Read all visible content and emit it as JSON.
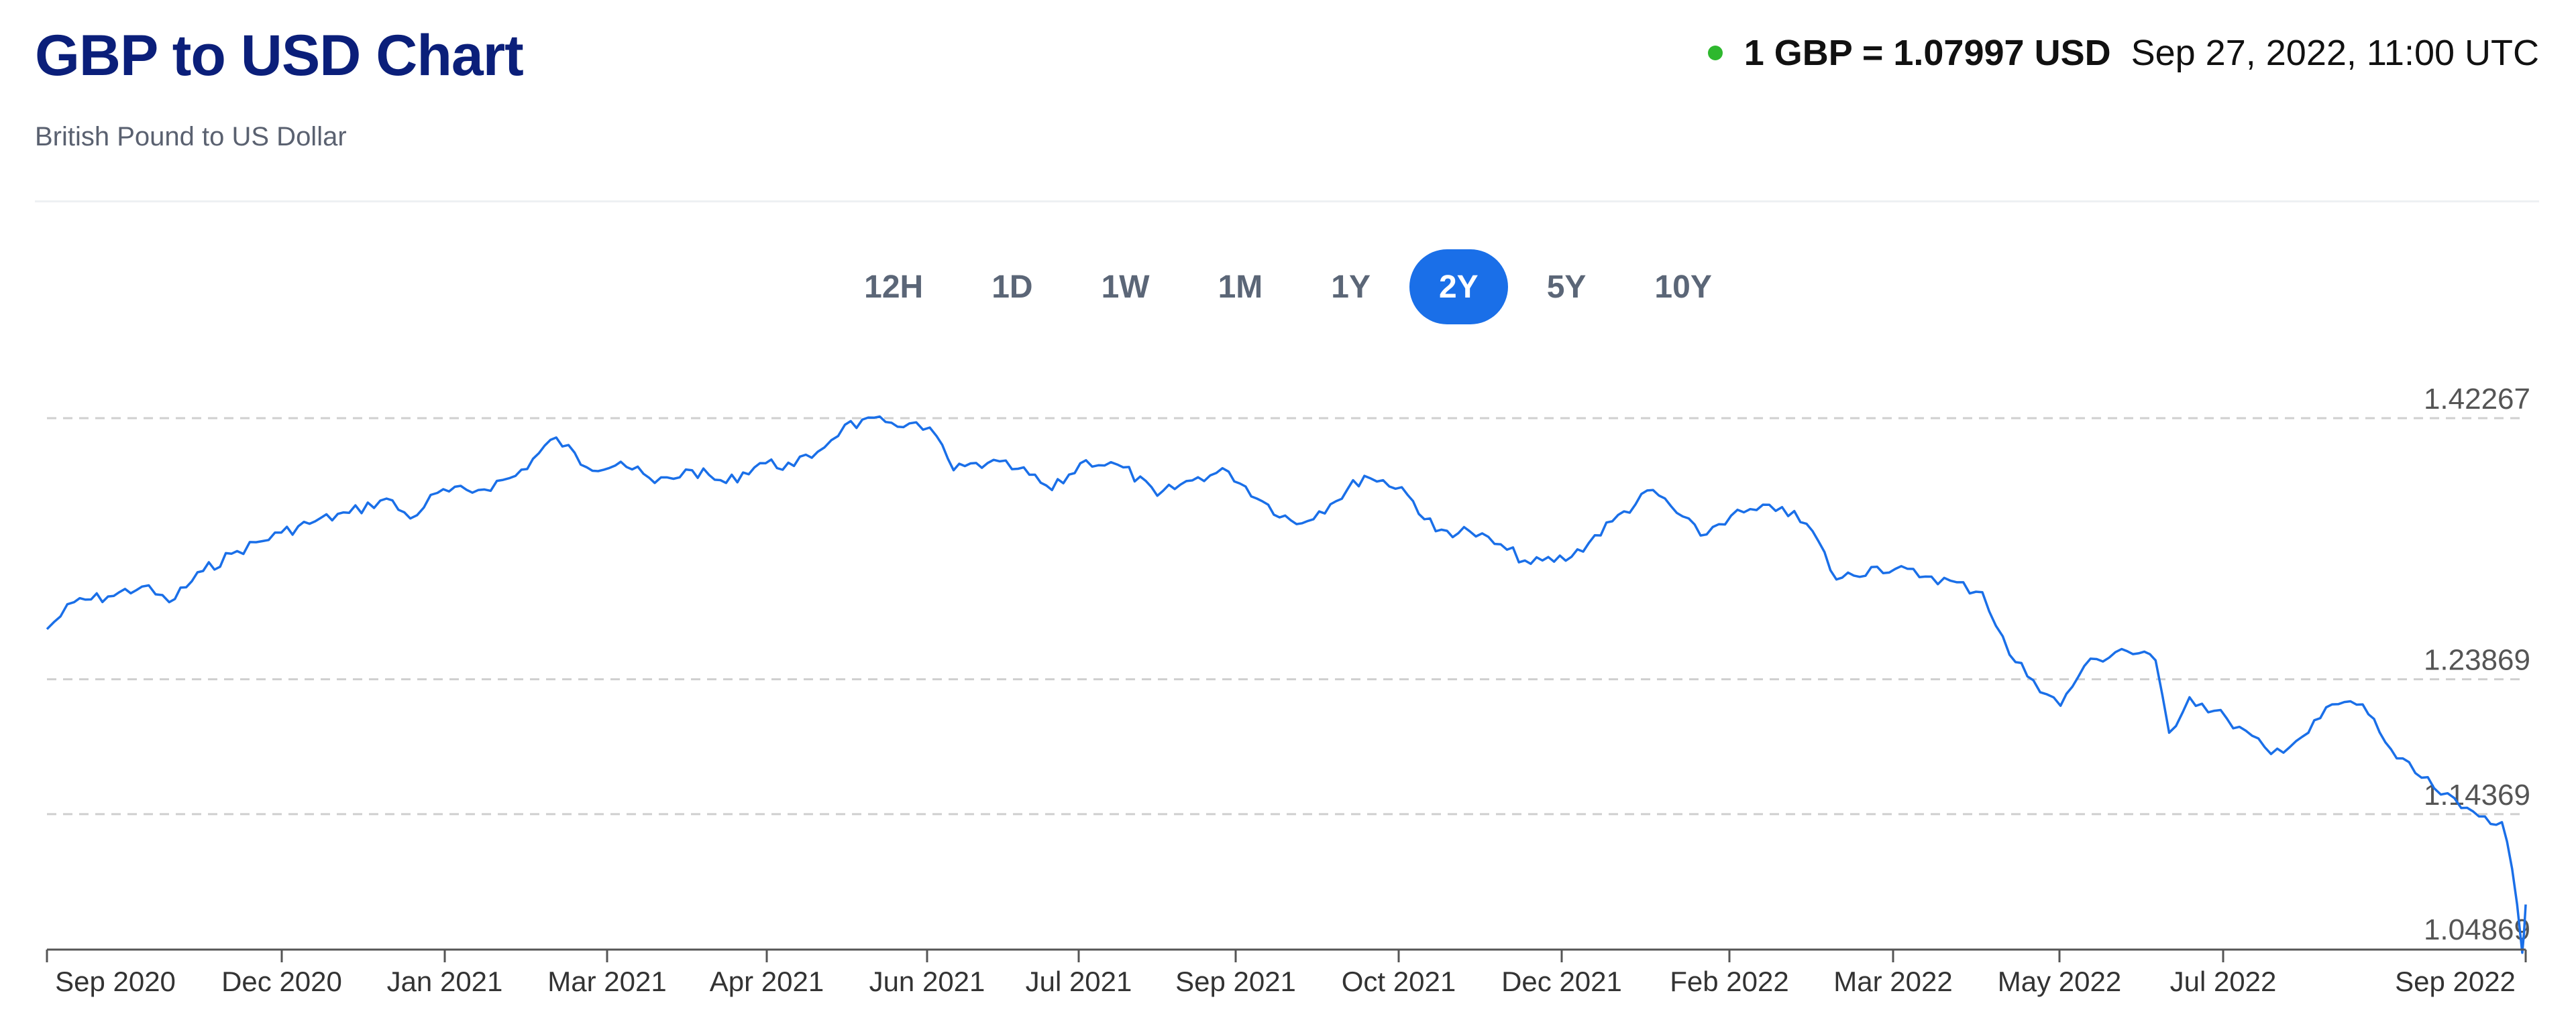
{
  "header": {
    "title": "GBP to USD Chart",
    "subtitle": "British Pound to US Dollar"
  },
  "rate": {
    "value_text": "1 GBP = 1.07997 USD",
    "timestamp": "Sep 27, 2022, 11:00 UTC",
    "live_color": "#2eb82e"
  },
  "ranges": [
    {
      "label": "12H",
      "active": false
    },
    {
      "label": "1D",
      "active": false
    },
    {
      "label": "1W",
      "active": false
    },
    {
      "label": "1M",
      "active": false
    },
    {
      "label": "1Y",
      "active": false
    },
    {
      "label": "2Y",
      "active": true
    },
    {
      "label": "5Y",
      "active": false
    },
    {
      "label": "10Y",
      "active": false
    }
  ],
  "chart_data": {
    "type": "line",
    "title": "",
    "xlabel": "",
    "ylabel": "",
    "line_color": "#1a6fe8",
    "grid": "dashed horizontal",
    "y_axis_position": "right",
    "y_ticks": [
      1.42267,
      1.23869,
      1.14369,
      1.04869
    ],
    "ylim": [
      1.04869,
      1.42267
    ],
    "x_ticks": [
      "Sep 2020",
      "Dec 2020",
      "Jan 2021",
      "Mar 2021",
      "Apr 2021",
      "Jun 2021",
      "Jul 2021",
      "Sep 2021",
      "Oct 2021",
      "Dec 2021",
      "Feb 2022",
      "Mar 2022",
      "May 2022",
      "Jul 2022",
      "Sep 2022"
    ],
    "xlim": [
      "2020-09-27",
      "2022-09-27"
    ],
    "series": [
      {
        "name": "",
        "points": [
          [
            "2020-09-27",
            1.274
          ],
          [
            "2020-10-05",
            1.293
          ],
          [
            "2020-10-15",
            1.297
          ],
          [
            "2020-10-25",
            1.304
          ],
          [
            "2020-11-02",
            1.293
          ],
          [
            "2020-11-12",
            1.315
          ],
          [
            "2020-11-22",
            1.329
          ],
          [
            "2020-12-05",
            1.342
          ],
          [
            "2020-12-15",
            1.35
          ],
          [
            "2020-12-25",
            1.356
          ],
          [
            "2021-01-05",
            1.366
          ],
          [
            "2021-01-12",
            1.352
          ],
          [
            "2021-01-20",
            1.37
          ],
          [
            "2021-02-01",
            1.372
          ],
          [
            "2021-02-12",
            1.382
          ],
          [
            "2021-02-24",
            1.409
          ],
          [
            "2021-03-05",
            1.388
          ],
          [
            "2021-03-15",
            1.392
          ],
          [
            "2021-03-25",
            1.377
          ],
          [
            "2021-04-05",
            1.386
          ],
          [
            "2021-04-15",
            1.377
          ],
          [
            "2021-04-25",
            1.391
          ],
          [
            "2021-05-05",
            1.389
          ],
          [
            "2021-05-12",
            1.399
          ],
          [
            "2021-05-20",
            1.418
          ],
          [
            "2021-06-01",
            1.42
          ],
          [
            "2021-06-08",
            1.419
          ],
          [
            "2021-06-16",
            1.41
          ],
          [
            "2021-06-21",
            1.386
          ],
          [
            "2021-07-01",
            1.391
          ],
          [
            "2021-07-10",
            1.387
          ],
          [
            "2021-07-20",
            1.372
          ],
          [
            "2021-07-30",
            1.393
          ],
          [
            "2021-08-10",
            1.388
          ],
          [
            "2021-08-20",
            1.368
          ],
          [
            "2021-09-01",
            1.381
          ],
          [
            "2021-09-10",
            1.385
          ],
          [
            "2021-09-20",
            1.364
          ],
          [
            "2021-09-30",
            1.348
          ],
          [
            "2021-10-10",
            1.362
          ],
          [
            "2021-10-20",
            1.382
          ],
          [
            "2021-10-31",
            1.374
          ],
          [
            "2021-11-10",
            1.343
          ],
          [
            "2021-11-20",
            1.343
          ],
          [
            "2021-12-01",
            1.33
          ],
          [
            "2021-12-08",
            1.32
          ],
          [
            "2021-12-20",
            1.325
          ],
          [
            "2022-01-01",
            1.35
          ],
          [
            "2022-01-13",
            1.372
          ],
          [
            "2022-01-27",
            1.34
          ],
          [
            "2022-02-05",
            1.354
          ],
          [
            "2022-02-20",
            1.36
          ],
          [
            "2022-03-01",
            1.343
          ],
          [
            "2022-03-08",
            1.309
          ],
          [
            "2022-03-20",
            1.318
          ],
          [
            "2022-04-05",
            1.311
          ],
          [
            "2022-04-20",
            1.3
          ],
          [
            "2022-04-28",
            1.256
          ],
          [
            "2022-05-05",
            1.238
          ],
          [
            "2022-05-13",
            1.22
          ],
          [
            "2022-05-20",
            1.248
          ],
          [
            "2022-05-31",
            1.26
          ],
          [
            "2022-06-10",
            1.252
          ],
          [
            "2022-06-14",
            1.201
          ],
          [
            "2022-06-20",
            1.226
          ],
          [
            "2022-07-01",
            1.211
          ],
          [
            "2022-07-14",
            1.186
          ],
          [
            "2022-07-25",
            1.201
          ],
          [
            "2022-08-01",
            1.221
          ],
          [
            "2022-08-10",
            1.221
          ],
          [
            "2022-08-20",
            1.183
          ],
          [
            "2022-08-31",
            1.162
          ],
          [
            "2022-09-08",
            1.148
          ],
          [
            "2022-09-15",
            1.142
          ],
          [
            "2022-09-20",
            1.138
          ],
          [
            "2022-09-23",
            1.105
          ],
          [
            "2022-09-26",
            1.046
          ],
          [
            "2022-09-27",
            1.08
          ]
        ]
      }
    ]
  }
}
